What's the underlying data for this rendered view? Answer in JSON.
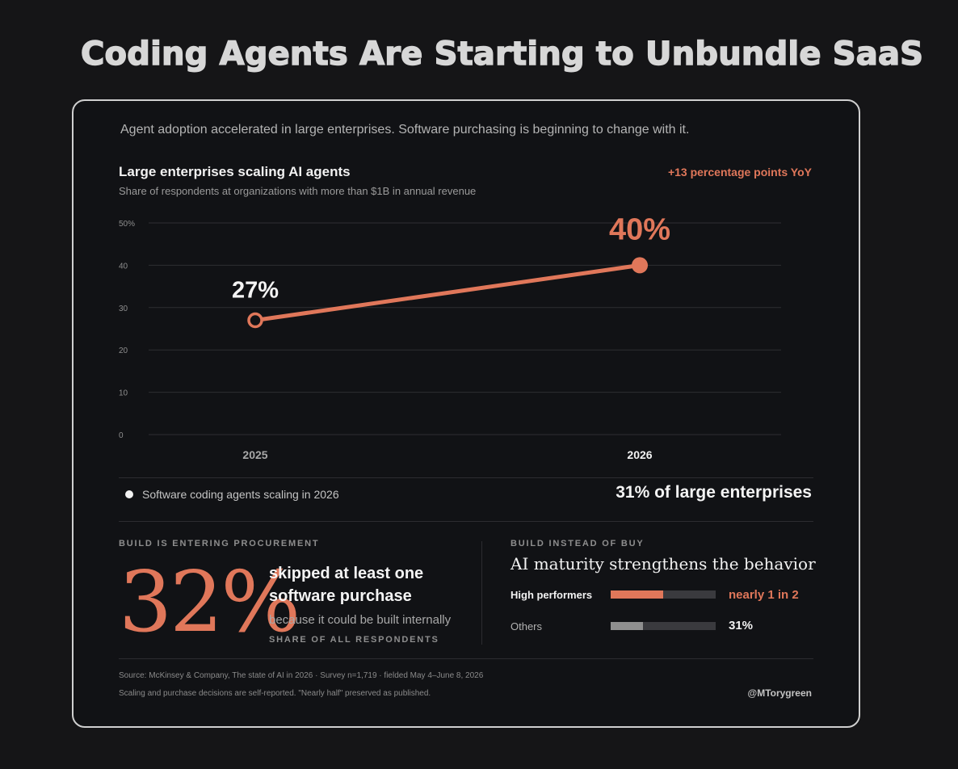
{
  "page_title": "Coding Agents Are Starting to Unbundle SaaS",
  "intro": "Agent adoption accelerated in large enterprises. Software purchasing is beginning to change with it.",
  "yoy_note": "+13 percentage points YoY",
  "chart_data": {
    "type": "line",
    "title": "Large enterprises scaling AI agents",
    "subtitle": "Share of respondents at organizations with more than $1B in annual revenue",
    "x": [
      "2025",
      "2026"
    ],
    "series": [
      {
        "values": [
          27,
          40
        ],
        "data_labels": [
          "27%",
          "40%"
        ]
      }
    ],
    "ylim": [
      0,
      50
    ],
    "yticks": [
      0,
      10,
      20,
      30,
      40,
      50
    ],
    "ytick_labels": [
      "0",
      "10",
      "20",
      "30",
      "40",
      "50%"
    ],
    "grid": true,
    "colors": {
      "line": "#e0775a",
      "grid": "#2e2e32",
      "text": "#f2f2f2",
      "muted": "#8e8e8e"
    }
  },
  "legend": {
    "text": "Software coding agents scaling in 2026",
    "value": "31% of large enterprises"
  },
  "build_section": {
    "label": "BUILD IS ENTERING PROCUREMENT",
    "big_value": "32%",
    "line1": "skipped at least one",
    "line2": "software purchase",
    "reason": "because it could be built internally",
    "base": "SHARE OF ALL RESPONDENTS"
  },
  "buy_section": {
    "label": "BUILD INSTEAD OF BUY",
    "heading": "AI maturity strengthens the behavior",
    "rows": [
      {
        "label": "High performers",
        "value_text": "nearly 1 in 2",
        "fraction": 0.5
      },
      {
        "label": "Others",
        "value_text": "31%",
        "fraction": 0.31
      }
    ]
  },
  "footer": {
    "source": "Source: McKinsey & Company, The state of AI in 2026 · Survey n=1,719 · fielded May 4–June 8, 2026",
    "note": "Scaling and purchase decisions are self-reported. \"Nearly half\" preserved as published.",
    "handle": "@MTorygreen"
  }
}
